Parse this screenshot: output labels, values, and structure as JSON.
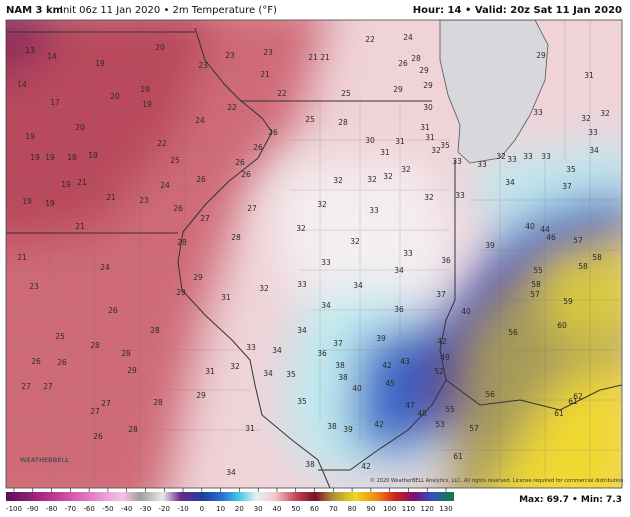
{
  "header": {
    "model": "NAM 3 km",
    "description": "Init 06z 11 Jan 2020 • 2m Temperature (°F)",
    "valid": "Hour: 14 • Valid: 20z Sat 11 Jan 2020"
  },
  "stations": [
    13,
    14,
    20,
    19,
    14,
    17,
    20,
    19,
    19,
    20,
    19,
    24,
    22,
    19,
    19,
    18,
    19,
    25,
    22,
    23,
    23,
    21,
    21,
    21,
    22,
    24,
    23,
    26,
    28,
    29,
    29,
    22,
    25,
    29,
    30,
    25,
    28,
    26,
    30,
    31,
    31,
    31,
    32,
    31,
    33,
    35,
    26,
    26,
    26,
    19,
    21,
    21,
    24,
    23,
    19,
    19,
    21,
    26,
    26,
    27,
    28,
    28,
    27,
    32,
    32,
    32,
    32,
    32,
    32,
    33,
    32,
    32,
    33,
    36,
    34,
    33,
    33,
    34,
    37,
    36,
    34,
    32,
    29,
    29,
    31,
    21,
    24,
    23,
    26,
    28,
    25,
    28,
    26,
    26,
    28,
    29,
    27,
    27,
    27,
    27,
    28,
    29,
    28,
    26,
    31,
    32,
    33,
    34,
    34,
    35,
    34,
    37,
    36,
    38,
    38,
    39,
    40,
    42,
    43,
    45,
    42,
    49,
    52,
    47,
    48,
    55,
    53,
    42,
    39,
    38,
    35,
    31,
    34,
    38,
    42,
    61,
    57,
    56,
    56,
    40,
    39,
    40,
    46,
    44,
    57,
    58,
    58,
    55,
    58,
    57,
    59,
    60,
    61,
    61,
    62,
    34,
    33,
    33,
    35,
    37,
    32,
    33,
    33,
    33,
    32,
    32,
    33,
    34,
    31,
    29,
    33
  ],
  "colorbar": {
    "ticks": [
      -100,
      -90,
      -80,
      -70,
      -60,
      -50,
      -40,
      -30,
      -20,
      -10,
      0,
      10,
      20,
      30,
      40,
      50,
      60,
      70,
      80,
      90,
      100,
      110,
      120,
      130
    ]
  },
  "footer": {
    "extremes": "Max: 69.7 • Min: 7.3",
    "copyright": "© 2020 WeatherBELL Analytics, LLC. All rights reserved. License required for commercial distribution.",
    "logo": "WEATHERBELL"
  }
}
